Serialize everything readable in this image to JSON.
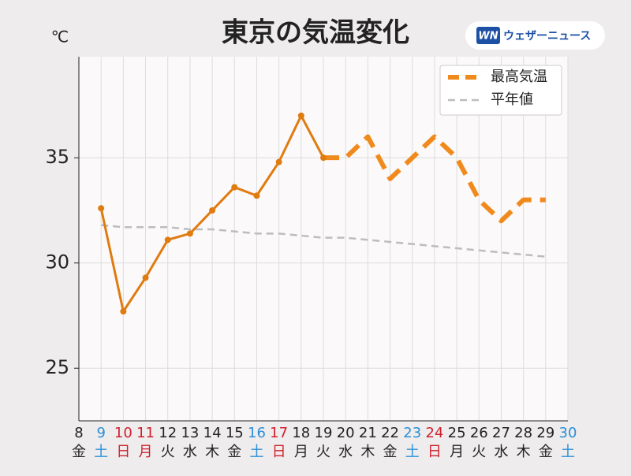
{
  "chart_data": {
    "type": "line",
    "title": "東京の気温変化",
    "unit": "℃",
    "brand": "ウェザーニュース",
    "brand_mark": "WN",
    "categories": [
      "8",
      "9",
      "10",
      "11",
      "12",
      "13",
      "14",
      "15",
      "16",
      "17",
      "18",
      "19",
      "20",
      "21",
      "22",
      "23",
      "24",
      "25",
      "26",
      "27",
      "28",
      "29",
      "30"
    ],
    "weekdays": [
      "金",
      "土",
      "日",
      "月",
      "火",
      "水",
      "木",
      "金",
      "土",
      "日",
      "月",
      "火",
      "水",
      "木",
      "金",
      "土",
      "日",
      "月",
      "火",
      "水",
      "木",
      "金",
      "土"
    ],
    "day_colors": [
      "#222222",
      "#2a8fd8",
      "#d0202e",
      "#d0202e",
      "#222222",
      "#222222",
      "#222222",
      "#222222",
      "#2a8fd8",
      "#d0202e",
      "#222222",
      "#222222",
      "#222222",
      "#222222",
      "#222222",
      "#2a8fd8",
      "#d0202e",
      "#222222",
      "#222222",
      "#222222",
      "#222222",
      "#222222",
      "#2a8fd8"
    ],
    "observed": {
      "color": "#e07b10",
      "markers": true,
      "values": [
        null,
        32.6,
        27.7,
        29.3,
        31.1,
        31.4,
        32.5,
        33.6,
        33.2,
        34.8,
        37.0,
        35.0,
        null,
        null,
        null,
        null,
        null,
        null,
        null,
        null,
        null,
        null,
        null
      ]
    },
    "series": [
      {
        "name": "最高気温",
        "color": "#f18a1c",
        "dashed": true,
        "values": [
          null,
          null,
          null,
          null,
          null,
          null,
          null,
          null,
          null,
          null,
          null,
          35,
          35,
          36,
          34,
          35,
          36,
          35,
          33,
          32,
          33,
          33,
          null
        ]
      },
      {
        "name": "平年値",
        "color": "#bdbdbd",
        "dashed": true,
        "values": [
          null,
          31.8,
          31.7,
          31.7,
          31.7,
          31.6,
          31.6,
          31.5,
          31.4,
          31.4,
          31.3,
          31.2,
          31.2,
          31.1,
          31.0,
          30.9,
          30.8,
          30.7,
          30.6,
          30.5,
          30.4,
          30.3,
          null
        ]
      }
    ],
    "ylim": [
      22.5,
      39.8
    ],
    "yticks": [
      25,
      30,
      35
    ],
    "grid": true,
    "legend": "upper right"
  }
}
